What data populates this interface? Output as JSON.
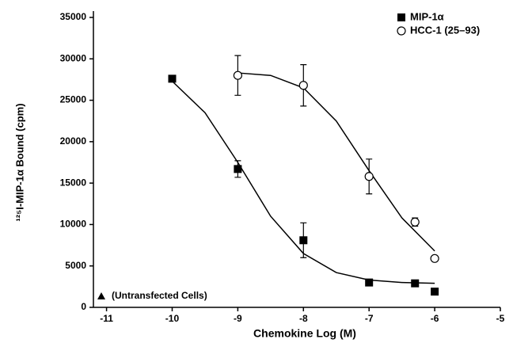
{
  "chart_data": {
    "type": "scatter",
    "xlabel": "Chemokine Log (M)",
    "ylabel": "¹²⁵I-MIP-1α Bound (cpm)",
    "xlim": [
      -11.2,
      -5
    ],
    "xticks": [
      -11,
      -10,
      -9,
      -8,
      -7,
      -6,
      -5
    ],
    "ylim": [
      0,
      35000
    ],
    "yticks": [
      0,
      5000,
      10000,
      15000,
      20000,
      25000,
      30000,
      35000
    ],
    "legend": "upper right",
    "annotation": "(Untransfected Cells)",
    "series": [
      {
        "name": "MIP-1α",
        "color": "#000000",
        "marker": "square",
        "x": [
          -10,
          -9,
          -8,
          -7,
          -6.3,
          -6
        ],
        "values": [
          27600,
          16700,
          8100,
          3000,
          2900,
          1900
        ],
        "errors": [
          null,
          1000,
          2100,
          null,
          null,
          null
        ],
        "fit": {
          "x": [
            -10,
            -9.5,
            -9,
            -8.5,
            -8,
            -7.5,
            -7,
            -6.5,
            -6
          ],
          "values": [
            27300,
            23500,
            17500,
            11000,
            6500,
            4200,
            3300,
            3000,
            2900
          ]
        }
      },
      {
        "name": "HCC-1 (25–93)",
        "color": "#000000",
        "marker": "circle",
        "x": [
          -9,
          -8,
          -7,
          -6.3,
          -6
        ],
        "values": [
          28000,
          26800,
          15800,
          10300,
          5900
        ],
        "errors": [
          2400,
          2500,
          2100,
          500,
          null
        ],
        "fit": {
          "x": [
            -9,
            -8.5,
            -8,
            -7.5,
            -7,
            -6.5,
            -6
          ],
          "values": [
            28300,
            28000,
            26500,
            22500,
            16500,
            10800,
            6800
          ]
        }
      }
    ]
  }
}
